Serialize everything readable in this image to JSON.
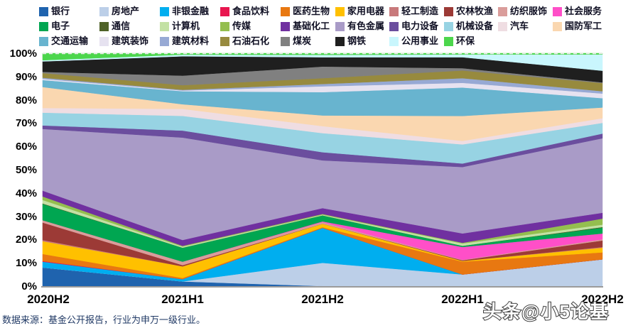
{
  "chart_data": {
    "type": "area",
    "stacked": true,
    "percent_stacked": true,
    "title": "",
    "xlabel": "",
    "ylabel": "",
    "ylim": [
      0,
      100
    ],
    "grid": false,
    "legend_position": "top",
    "categories": [
      "2020H2",
      "2021H1",
      "2021H2",
      "2022H1",
      "2022H2"
    ],
    "y_ticks": [
      "0%",
      "10%",
      "20%",
      "30%",
      "40%",
      "50%",
      "60%",
      "70%",
      "80%",
      "90%",
      "100%"
    ],
    "series": [
      {
        "name": "银行",
        "color": "#1F63AE",
        "values": [
          8,
          2,
          0,
          0,
          0
        ]
      },
      {
        "name": "房地产",
        "color": "#BCCFE8",
        "values": [
          0,
          0,
          10,
          5,
          11.5
        ]
      },
      {
        "name": "非银金融",
        "color": "#00AEEF",
        "values": [
          2.5,
          1,
          15,
          0,
          0
        ]
      },
      {
        "name": "食品饮料",
        "color": "#E8164F",
        "values": [
          0.3,
          0,
          0,
          0,
          0
        ]
      },
      {
        "name": "医药生物",
        "color": "#E87811",
        "values": [
          3,
          0.5,
          0.3,
          5.5,
          3
        ]
      },
      {
        "name": "家用电器",
        "color": "#FFC000",
        "values": [
          5.5,
          5,
          1.5,
          0.3,
          2
        ]
      },
      {
        "name": "轻工制造",
        "color": "#C8797B",
        "values": [
          0.5,
          0,
          0,
          0,
          0.3
        ]
      },
      {
        "name": "农林牧渔",
        "color": "#9C3A36",
        "values": [
          7.5,
          0.5,
          0,
          0.3,
          2.8
        ]
      },
      {
        "name": "纺织服饰",
        "color": "#DA9D9B",
        "values": [
          1,
          1.5,
          0.7,
          0.2,
          0.5
        ]
      },
      {
        "name": "社会服务",
        "color": "#FF4FC8",
        "values": [
          0,
          0,
          0.3,
          5.5,
          2.5
        ]
      },
      {
        "name": "电子",
        "color": "#00A651",
        "values": [
          7,
          6,
          2.6,
          0.5,
          2.5
        ]
      },
      {
        "name": "通信",
        "color": "#4F6228",
        "values": [
          0.2,
          0,
          0,
          0,
          0.3
        ]
      },
      {
        "name": "计算机",
        "color": "#C3E1A4",
        "values": [
          1.5,
          0.5,
          0.3,
          1,
          1
        ]
      },
      {
        "name": "传媒",
        "color": "#94BE4F",
        "values": [
          1.5,
          0.3,
          0.3,
          0.3,
          2.6
        ]
      },
      {
        "name": "基础化工",
        "color": "#7030A0",
        "values": [
          2.5,
          2.5,
          2.5,
          4,
          2.5
        ]
      },
      {
        "name": "有色金属",
        "color": "#A99BC7",
        "values": [
          26.5,
          44,
          20.5,
          28.5,
          32
        ]
      },
      {
        "name": "电力设备",
        "color": "#6B4E9E",
        "values": [
          1.5,
          3,
          3.5,
          1.5,
          2
        ]
      },
      {
        "name": "机械设备",
        "color": "#97D3E3",
        "values": [
          5.5,
          6.3,
          8.2,
          8.2,
          4.6
        ]
      },
      {
        "name": "汽车",
        "color": "#EFDDE2",
        "values": [
          2,
          3,
          3,
          1.5,
          2
        ]
      },
      {
        "name": "国防军工",
        "color": "#FAD7B0",
        "values": [
          9,
          2,
          4.6,
          10.7,
          4.6
        ]
      },
      {
        "name": "交通运输",
        "color": "#68B4CF",
        "values": [
          3,
          5.6,
          10,
          12.2,
          4
        ]
      },
      {
        "name": "建筑装饰",
        "color": "#E6E2F0",
        "values": [
          0.5,
          0.3,
          2.5,
          2,
          2
        ]
      },
      {
        "name": "建筑材料",
        "color": "#97A9D4",
        "values": [
          0.5,
          0.3,
          1,
          2,
          1
        ]
      },
      {
        "name": "石油石化",
        "color": "#978A3E",
        "values": [
          2,
          2,
          2.5,
          3.3,
          3.5
        ]
      },
      {
        "name": "煤炭",
        "color": "#808080",
        "values": [
          0.5,
          4.1,
          5,
          1,
          0.3
        ]
      },
      {
        "name": "钢铁",
        "color": "#1F1F1F",
        "values": [
          4.5,
          8.3,
          4,
          4.7,
          5
        ]
      },
      {
        "name": "公用事业",
        "color": "#C9F6FD",
        "values": [
          0.5,
          0.7,
          1,
          1.2,
          7
        ]
      },
      {
        "name": "环保",
        "color": "#4CD64C",
        "values": [
          3,
          0.6,
          0.7,
          0.5,
          0.5
        ]
      }
    ]
  },
  "footer": {
    "source_note": "数据来源：基金公开报告，行业为申万一级行业。"
  },
  "watermark": {
    "text": "头条@小5论基"
  }
}
